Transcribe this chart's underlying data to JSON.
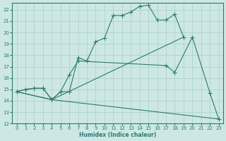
{
  "bg_color": "#cde8e4",
  "grid_color": "#a8cdc8",
  "line_color": "#2a7a72",
  "marker": "+",
  "marker_size": 4,
  "xlabel": "Humidex (Indice chaleur)",
  "xlim": [
    -0.5,
    23.5
  ],
  "ylim": [
    12,
    22.6
  ],
  "yticks": [
    12,
    13,
    14,
    15,
    16,
    17,
    18,
    19,
    20,
    21,
    22
  ],
  "xticks": [
    0,
    1,
    2,
    3,
    4,
    5,
    6,
    7,
    8,
    9,
    10,
    11,
    12,
    13,
    14,
    15,
    16,
    17,
    18,
    19,
    20,
    21,
    22,
    23
  ],
  "line1_x": [
    0,
    1,
    2,
    3,
    4,
    5,
    6,
    7,
    8,
    9,
    10,
    11,
    12,
    13,
    14,
    15,
    16,
    17,
    18,
    19
  ],
  "line1_y": [
    14.8,
    15.0,
    15.1,
    15.1,
    14.1,
    14.8,
    14.8,
    17.8,
    17.5,
    19.2,
    19.5,
    21.5,
    21.5,
    21.8,
    22.3,
    22.4,
    21.1,
    21.1,
    21.6,
    19.6
  ],
  "line2_x": [
    0,
    1,
    2,
    3,
    4,
    5,
    6,
    7,
    17,
    18,
    20,
    22,
    23
  ],
  "line2_y": [
    14.8,
    15.0,
    15.1,
    15.1,
    14.1,
    14.8,
    16.3,
    17.5,
    17.1,
    16.5,
    19.6,
    14.7,
    12.4
  ],
  "line3_x": [
    0,
    4,
    19
  ],
  "line3_y": [
    14.8,
    14.1,
    19.6
  ],
  "line4_x": [
    0,
    4,
    23
  ],
  "line4_y": [
    14.8,
    14.1,
    12.4
  ]
}
